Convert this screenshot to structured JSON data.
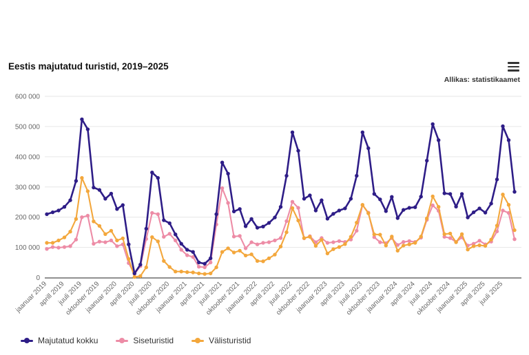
{
  "header": {
    "title": "Eestis majutatud turistid, 2019–2025",
    "source": "Allikas: statistikaamet"
  },
  "chart_data": {
    "type": "line",
    "title": "Eestis majutatud turistid, 2019–2025",
    "x_range": "jaanuar 2019 – september 2025, monthly points",
    "ylim": [
      0,
      600000
    ],
    "grid": true,
    "legend_position": "bottom-left",
    "y_tick_labels": [
      "0",
      "100 000",
      "200 000",
      "300 000",
      "400 000",
      "500 000",
      "600 000"
    ],
    "x_tick_labels": [
      "jaanuar 2019",
      "aprill 2019",
      "juuli 2019",
      "oktoober 2019",
      "jaanuar 2020",
      "aprill 2020",
      "juuli 2020",
      "oktoober 2020",
      "jaanuar 2021",
      "aprill 2021",
      "juuli 2021",
      "oktoober 2021",
      "jaanuar 2022",
      "aprill 2022",
      "juuli 2022",
      "oktoober 2022",
      "jaanuar 2023",
      "aprill 2023",
      "juuli 2023",
      "oktoober 2023",
      "jaanuar 2024",
      "aprill 2024",
      "juuli 2024",
      "oktoober 2024",
      "jaanuar 2025",
      "aprill 2025",
      "juuli 2025"
    ],
    "series": [
      {
        "name": "Majutatud kokku",
        "color": "#2e1d87",
        "values": [
          210000,
          216000,
          222000,
          234000,
          256000,
          320000,
          524000,
          491000,
          298000,
          290000,
          261000,
          278000,
          227000,
          240000,
          110000,
          14000,
          43000,
          162000,
          348000,
          330000,
          190000,
          180000,
          143000,
          112000,
          92000,
          85000,
          50000,
          46000,
          64000,
          210000,
          381000,
          344000,
          219000,
          227000,
          170000,
          194000,
          165000,
          169000,
          181000,
          199000,
          234000,
          337000,
          481000,
          420000,
          261000,
          272000,
          222000,
          256000,
          195000,
          211000,
          222000,
          229000,
          261000,
          337000,
          481000,
          428000,
          277000,
          259000,
          220000,
          267000,
          197000,
          224000,
          231000,
          233000,
          268000,
          387000,
          508000,
          455000,
          279000,
          277000,
          235000,
          277000,
          199000,
          216000,
          229000,
          215000,
          245000,
          325000,
          501000,
          455000,
          284000
        ]
      },
      {
        "name": "Siseturistid",
        "color": "#ed8ca6",
        "values": [
          95000,
          101000,
          99000,
          101000,
          104000,
          126000,
          200000,
          205000,
          112000,
          119000,
          117000,
          123000,
          104000,
          110000,
          48000,
          12000,
          38000,
          128000,
          214000,
          210000,
          135000,
          145000,
          123000,
          92000,
          74000,
          68000,
          36000,
          34000,
          50000,
          176000,
          296000,
          247000,
          136000,
          138000,
          97000,
          117000,
          110000,
          115000,
          117000,
          123000,
          131000,
          187000,
          251000,
          231000,
          130000,
          137000,
          117000,
          131000,
          115000,
          117000,
          121000,
          118000,
          126000,
          155000,
          240000,
          215000,
          134000,
          117000,
          114000,
          131000,
          108000,
          118000,
          121000,
          118000,
          132000,
          191000,
          239000,
          221000,
          135000,
          131000,
          118000,
          133000,
          106000,
          112000,
          122000,
          110000,
          119000,
          153000,
          222000,
          214000,
          127000
        ]
      },
      {
        "name": "Välisturistid",
        "color": "#f3a73c",
        "values": [
          115000,
          115000,
          123000,
          133000,
          152000,
          194000,
          330000,
          286000,
          186000,
          171000,
          144000,
          155000,
          123000,
          130000,
          62000,
          2000,
          5000,
          34000,
          134000,
          120000,
          55000,
          35000,
          20000,
          20000,
          18000,
          17000,
          14000,
          12000,
          14000,
          34000,
          85000,
          97000,
          83000,
          89000,
          73000,
          77000,
          55000,
          54000,
          64000,
          76000,
          103000,
          150000,
          230000,
          189000,
          131000,
          135000,
          105000,
          125000,
          80000,
          94000,
          101000,
          111000,
          135000,
          182000,
          241000,
          213000,
          143000,
          142000,
          106000,
          136000,
          89000,
          106000,
          110000,
          115000,
          136000,
          196000,
          269000,
          234000,
          144000,
          146000,
          117000,
          144000,
          93000,
          104000,
          107000,
          105000,
          126000,
          172000,
          275000,
          241000,
          157000
        ]
      }
    ]
  }
}
